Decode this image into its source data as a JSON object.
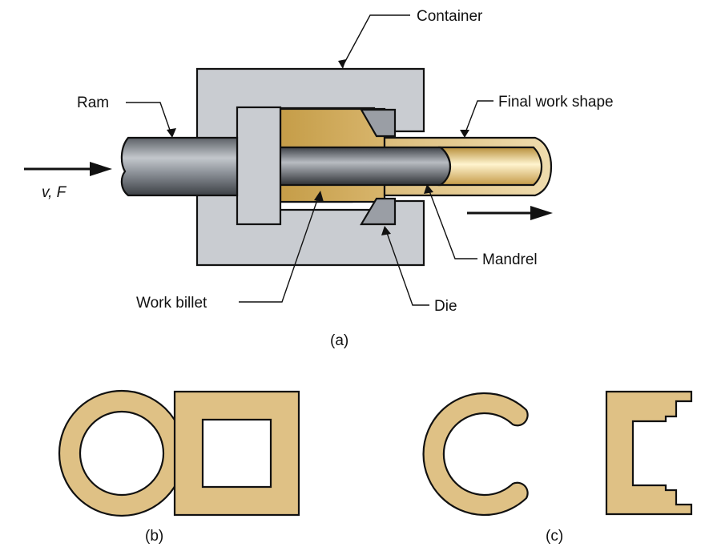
{
  "labels": {
    "container": "Container",
    "ram": "Ram",
    "final_work_shape": "Final work shape",
    "mandrel": "Mandrel",
    "work_billet": "Work billet",
    "die": "Die",
    "velocity_force": "v, F",
    "part_a": "(a)",
    "part_b": "(b)",
    "part_c": "(c)"
  },
  "colors": {
    "container_fill": "#c9ccd1",
    "billet_fill": "#c9a24f",
    "product_fill": "#e3c78e",
    "cross_section_fill": "#dfc185",
    "ram_fill": "#8a8f96",
    "outline": "#111111"
  }
}
